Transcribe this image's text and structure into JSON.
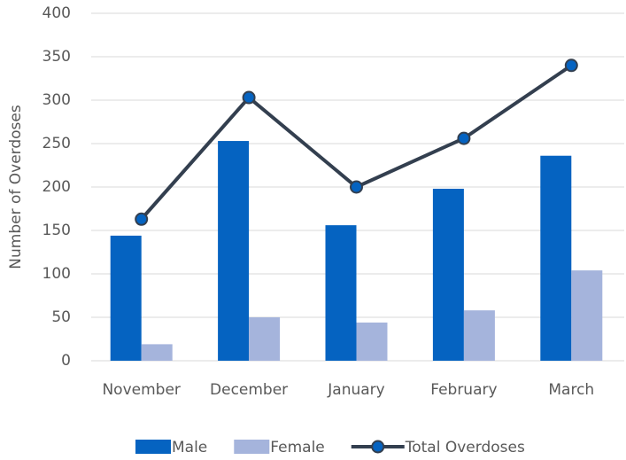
{
  "chart_data": {
    "type": "bar",
    "y_label": "Number of Overdoses",
    "categories": [
      "November",
      "December",
      "January",
      "February",
      "March"
    ],
    "series": [
      {
        "name": "Male",
        "type": "bar",
        "color": "#0563c1",
        "values": [
          144,
          253,
          156,
          198,
          236
        ]
      },
      {
        "name": "Female",
        "type": "bar",
        "color": "#a5b4dc",
        "values": [
          19,
          50,
          44,
          58,
          104
        ]
      },
      {
        "name": "Total Overdoses",
        "type": "line",
        "color": "#333f4f",
        "values": [
          163,
          303,
          200,
          256,
          340
        ]
      }
    ],
    "ylim": [
      0,
      400
    ],
    "yticks": [
      0,
      50,
      100,
      150,
      200,
      250,
      300,
      350,
      400
    ],
    "grid": true,
    "legend": "bottom"
  }
}
